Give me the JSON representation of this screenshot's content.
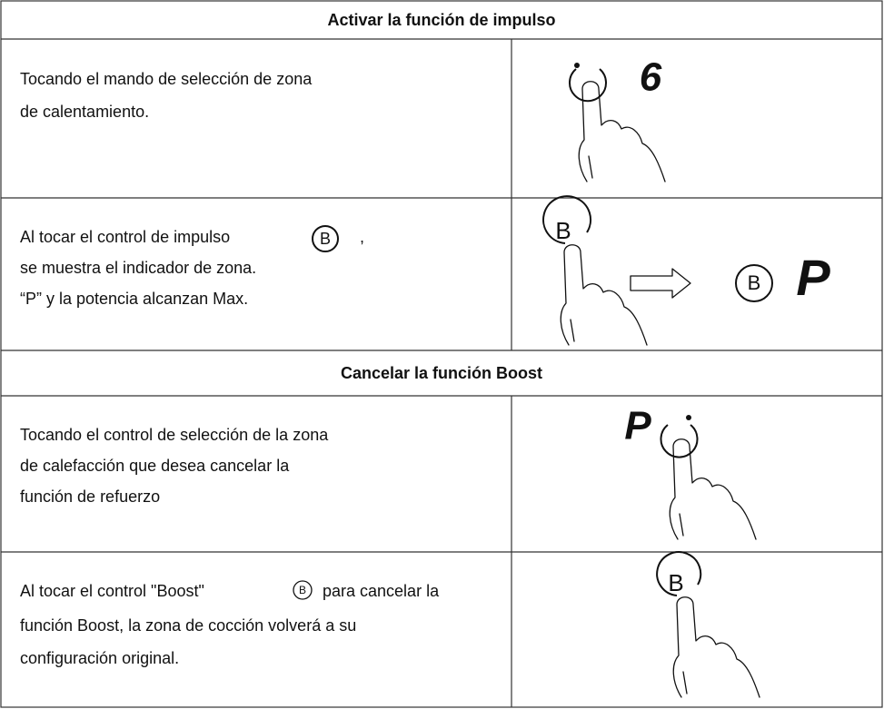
{
  "sections": [
    {
      "title": "Activar la función de impulso",
      "rows": [
        {
          "lines": [
            "Tocando el mando de selección de zona",
            "de calentamiento."
          ],
          "display": "6"
        },
        {
          "lines": [
            "Al tocar el control de impulso",
            ",",
            "se muestra el indicador de zona.",
            "“P” y la potencia alcanzan Max."
          ],
          "display": "P"
        }
      ]
    },
    {
      "title": "Cancelar la función Boost",
      "rows": [
        {
          "lines": [
            "Tocando el control de selección de la zona",
            "de calefacción que desea cancelar la",
            "función de refuerzo"
          ],
          "display": "P"
        },
        {
          "lines": [
            "Al tocar el control \"Boost\"",
            "para cancelar la",
            "función Boost, la zona de cocción volverá a su",
            "configuración original."
          ]
        }
      ]
    }
  ],
  "boost_key": "B"
}
